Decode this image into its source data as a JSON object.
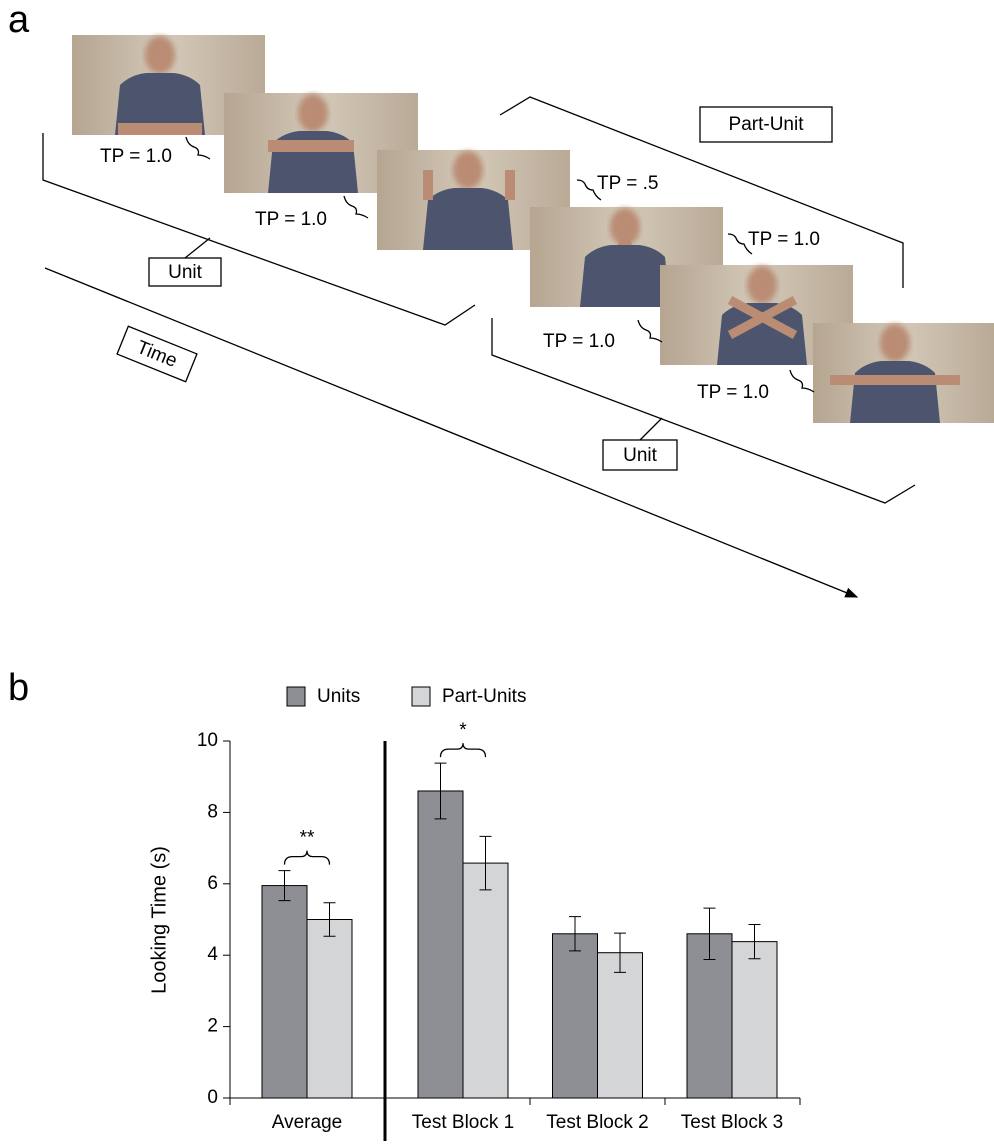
{
  "panels": {
    "a": "a",
    "b": "b"
  },
  "diagram": {
    "tp_labels": [
      "TP = 1.0",
      "TP = 1.0",
      "TP = .5",
      "TP = 1.0",
      "TP = 1.0",
      "TP = 1.0"
    ],
    "unit_labels": [
      "Unit",
      "Unit"
    ],
    "part_unit_label": "Part-Unit",
    "time_label": "Time"
  },
  "chart_data": {
    "type": "bar",
    "categories": [
      "Average",
      "Test Block 1",
      "Test Block 2",
      "Test Block 3"
    ],
    "series": [
      {
        "name": "Units",
        "color": "#8e8f94",
        "values": [
          5.95,
          8.6,
          4.6,
          4.6
        ],
        "errors": [
          0.42,
          0.78,
          0.48,
          0.72
        ]
      },
      {
        "name": "Part-Units",
        "color": "#d4d5d7",
        "values": [
          5.0,
          6.58,
          4.07,
          4.38
        ],
        "errors": [
          0.47,
          0.75,
          0.55,
          0.48
        ]
      }
    ],
    "significance": [
      "**",
      "*",
      null,
      null
    ],
    "y_label": "Looking Time (s)",
    "ylim": [
      0,
      10
    ],
    "yticks": [
      0,
      2,
      4,
      6,
      8,
      10
    ]
  }
}
